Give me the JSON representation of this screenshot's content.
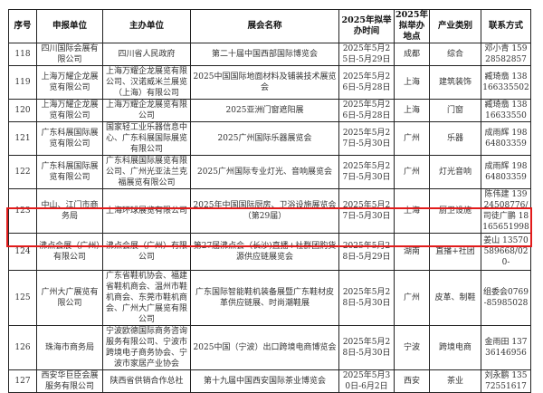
{
  "table": {
    "headers": [
      "序号",
      "申报单位",
      "主办单位",
      "展会名称",
      "2025年拟举办时间",
      "2025年拟举办地点",
      "产业类别",
      "联系方式"
    ],
    "highlight_color": "#e21b1b",
    "highlighted_row": "124",
    "rows": [
      {
        "no": "118",
        "applicant": "四川国际会展有限公司",
        "organizer": "四川省人民政府",
        "name": "第二十届中国西部国际博览会",
        "time": "2025年5月25日-5月29日",
        "place": "成都",
        "industry": "综合",
        "contact": "邓小青 15928582857"
      },
      {
        "no": "119",
        "applicant": "上海万耀企龙展览有限公司",
        "organizer": "上海万耀企龙展览有限公司、汉诺威米兰展览（上海）有限公司",
        "name": "2025中国国际地面材料及铺装技术展览会",
        "time": "2025年5月26日-5月28日",
        "place": "上海",
        "industry": "建筑装饰",
        "contact": "臧琦翡 138166335502"
      },
      {
        "no": "120",
        "applicant": "上海万耀企龙展览有限公司",
        "organizer": "上海万耀企龙展览有限公司",
        "name": "2025亚洲门窗遮阳展",
        "time": "2025年5月26日-5月28日",
        "place": "上海",
        "industry": "门窗",
        "contact": "臧琦翡 13816633550"
      },
      {
        "no": "121",
        "applicant": "广东科展国际展览有限公司",
        "organizer": "国家轻工业乐器信息中心、广东科展国际展览有限公司",
        "name": "2025广州国际乐器展览会",
        "time": "2025年5月27日-5月30日",
        "place": "广州",
        "industry": "乐器",
        "contact": "成雨辉 19864803359"
      },
      {
        "no": "122",
        "applicant": "广东科展国际展览有限公司",
        "organizer": "广东科展国际展览有限公司、广州光亚法兰克福展览有限公司",
        "name": "2025广州国际专业灯光、音响展览会",
        "time": "2025年5月27日-5月30日",
        "place": "广州",
        "industry": "灯光音响",
        "contact": "成雨辉 19864803359"
      },
      {
        "no": "123",
        "applicant": "中山、江门市商务局",
        "organizer": "上海环球展览有限公司",
        "name": "2025年中国国际厨房、卫浴设施展览会（第29届）",
        "time": "2025年5月27日-5月30日",
        "place": "上海",
        "industry": "厨卫设施",
        "contact": "陈伟建 13924508776/司徒广鹏 18165651998"
      },
      {
        "no": "124",
        "applicant": "沸点会展（广州）有限公司",
        "organizer": "沸点会展（广州）有限公司",
        "name": "第27届沸点会（长沙)直播+社群团购货源供应链展览会",
        "time": "2025年5月28日-5月29日",
        "place": "湖南",
        "industry": "直播+社团",
        "contact": "姜山 13570589668/020-"
      },
      {
        "no": "125",
        "applicant": "广州大广展览有限公司",
        "organizer": "广东省鞋机协会、福建省鞋机商会、温州市鞋机商会、东莞市鞋机商会、广州大广展览有限公司",
        "name": "广东国际智能鞋机装备展暨广东鞋材皮革供应链展、时尚潮鞋展",
        "time": "2025年5月28日-5月30日",
        "place": "广州",
        "industry": "皮革、制鞋",
        "contact": "组委会0769-85985028"
      },
      {
        "no": "126",
        "applicant": "珠海市商务局",
        "organizer": "宁波欧德国际商务咨询服务有限公司、宁波市跨境电子商务协会、宁波市家居产业协会",
        "name": "2025中国（宁波）出口跨境电商博览会",
        "time": "2025年5月28日-5月30日",
        "place": "宁波",
        "industry": "跨境电商",
        "contact": "金雨田 13736146956"
      },
      {
        "no": "127",
        "applicant": "西安华巨臣会展服务有限公司",
        "organizer": "陕西省供销合作总社",
        "name": "第十九届中国西安国际茶业博览会",
        "time": "2025年5月30日-6月2日",
        "place": "西安",
        "industry": "茶业",
        "contact": "刘永鹏 13572551617"
      }
    ]
  }
}
